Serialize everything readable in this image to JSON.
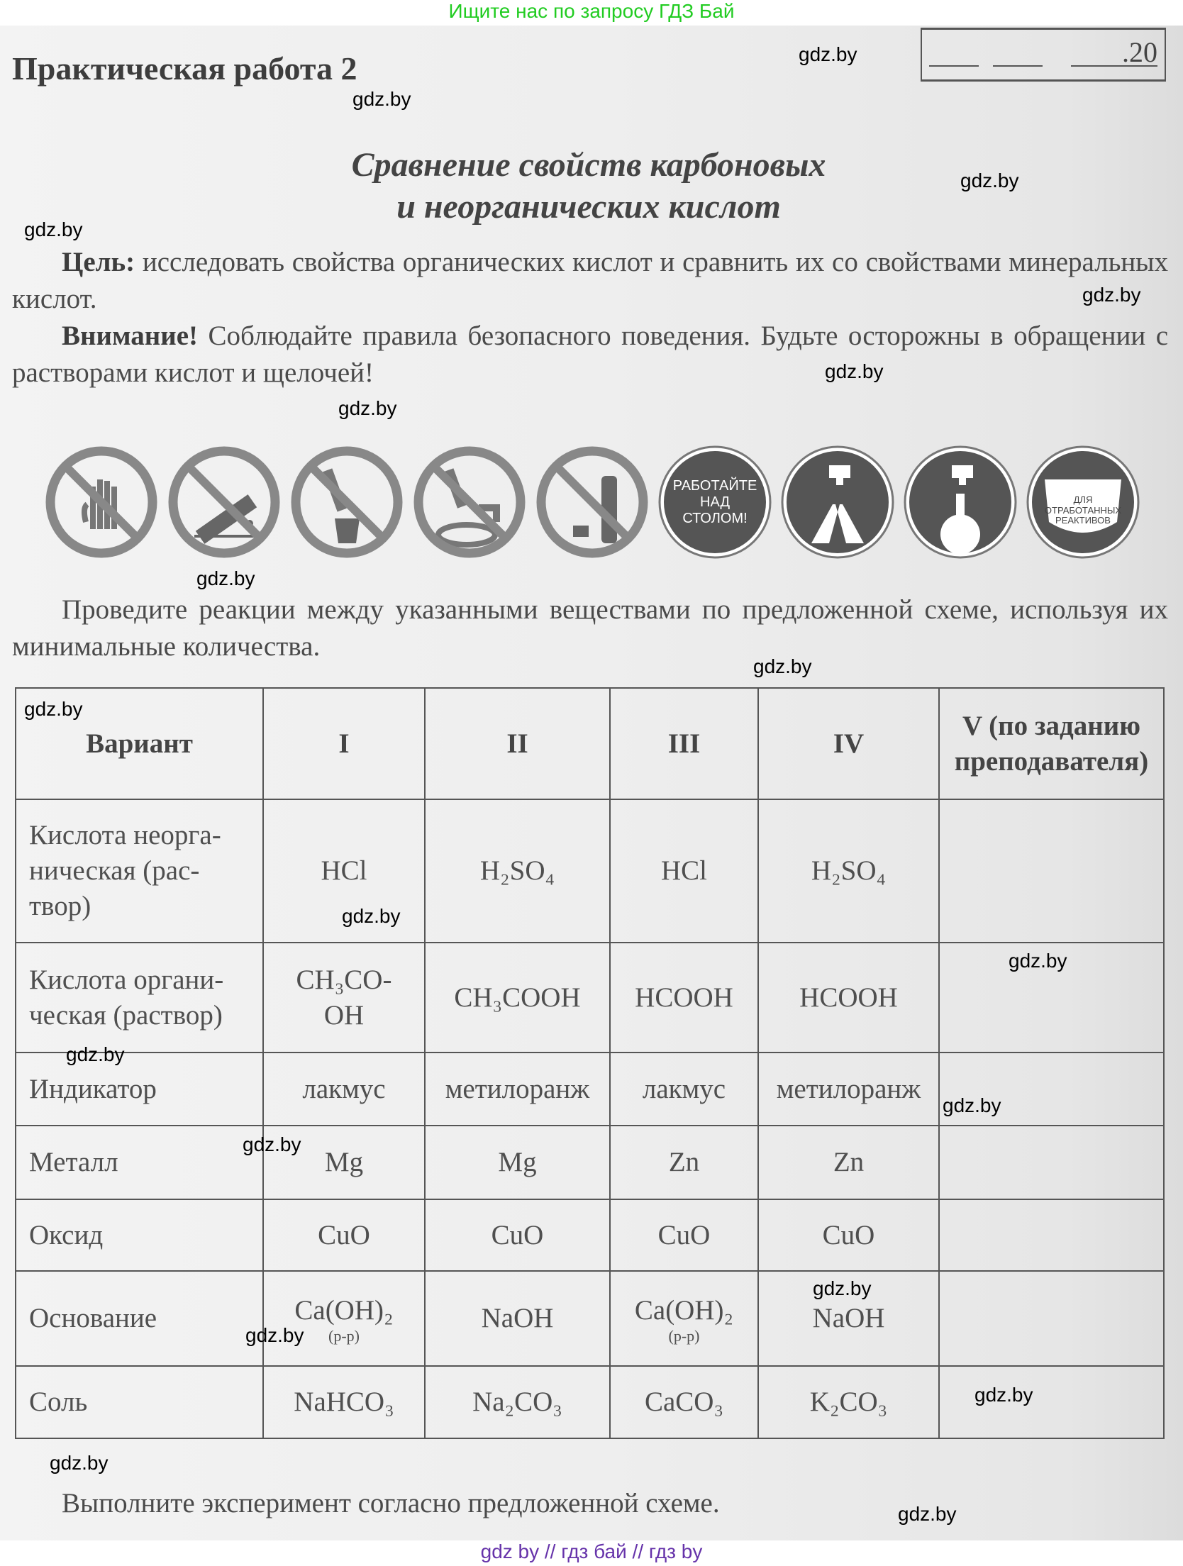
{
  "top_banner": "Ищите нас по запросу ГДЗ Бай",
  "footer_banner": "gdz by  //  гдз бай  //  гдз by",
  "title": "Практическая работа 2",
  "date_field": {
    "year_suffix": ".20"
  },
  "subtitle": [
    "Сравнение свойств карбоновых",
    "и неорганических кислот"
  ],
  "goal": {
    "label": "Цель:",
    "text": " исследовать свойства органических кислот и сравнить их со свойствами минеральных кислот."
  },
  "warning": {
    "label": "Внимание!",
    "text": " Соблюдайте правила  безопасного поведения. Будьте осторожны в обращении с растворами кислот и щелочей!"
  },
  "safety_icons": [
    {
      "icon": "no-touch-hand-icon"
    },
    {
      "icon": "no-taste-icon"
    },
    {
      "icon": "no-pour-into-glass-icon"
    },
    {
      "icon": "no-pour-into-sink-icon"
    },
    {
      "icon": "no-store-bottle-icon"
    },
    {
      "icon": "work-over-table-icon",
      "text": [
        "РАБОТАЙТЕ",
        "НАД",
        "СТОЛОМ!"
      ]
    },
    {
      "icon": "wash-hands-icon"
    },
    {
      "icon": "rinse-flask-icon"
    },
    {
      "icon": "waste-container-icon",
      "text": [
        "ДЛЯ",
        "ОТРАБОТАННЫХ",
        "РЕАКТИВОВ"
      ]
    }
  ],
  "instruction": "Проведите реакции между указанными веществами по предложенной схеме, используя их минимальные количества.",
  "table": {
    "headers": [
      "Вариант",
      "I",
      "II",
      "III",
      "IV",
      "V (по заданию преподавателя)"
    ],
    "rows": [
      {
        "label": "Кислота неорга-\nническая (рас-\nтвор)",
        "cells": [
          "HCl",
          "H₂SO₄",
          "HCl",
          "H₂SO₄",
          ""
        ]
      },
      {
        "label": "Кислота органи-\nческая (раствор)",
        "cells": [
          "CH₃CO-\nOH",
          "CH₃COOH",
          "HCOOH",
          "HCOOH",
          ""
        ]
      },
      {
        "label": "Индикатор",
        "cells": [
          "лакмус",
          "метилоранж",
          "лакмус",
          "метилоранж",
          ""
        ]
      },
      {
        "label": "Металл",
        "cells": [
          "Mg",
          "Mg",
          "Zn",
          "Zn",
          ""
        ]
      },
      {
        "label": "Оксид",
        "cells": [
          "CuO",
          "CuO",
          "CuO",
          "CuO",
          ""
        ]
      },
      {
        "label": "Основание",
        "cells": [
          "Ca(OH)₂",
          "NaOH",
          "Ca(OH)₂",
          "NaOH",
          ""
        ],
        "notes": [
          "(р-р)",
          "",
          "(р-р)",
          "",
          ""
        ]
      },
      {
        "label": "Соль",
        "cells": [
          "NaHCO₃",
          "Na₂CO₃",
          "CaCO₃",
          "K₂CO₃",
          ""
        ]
      }
    ]
  },
  "closing": "Выполните эксперимент согласно предложенной схеме.",
  "watermark": "gdz.by",
  "colors": {
    "banner_top": "#22cc22",
    "banner_bottom": "#6633aa"
  }
}
